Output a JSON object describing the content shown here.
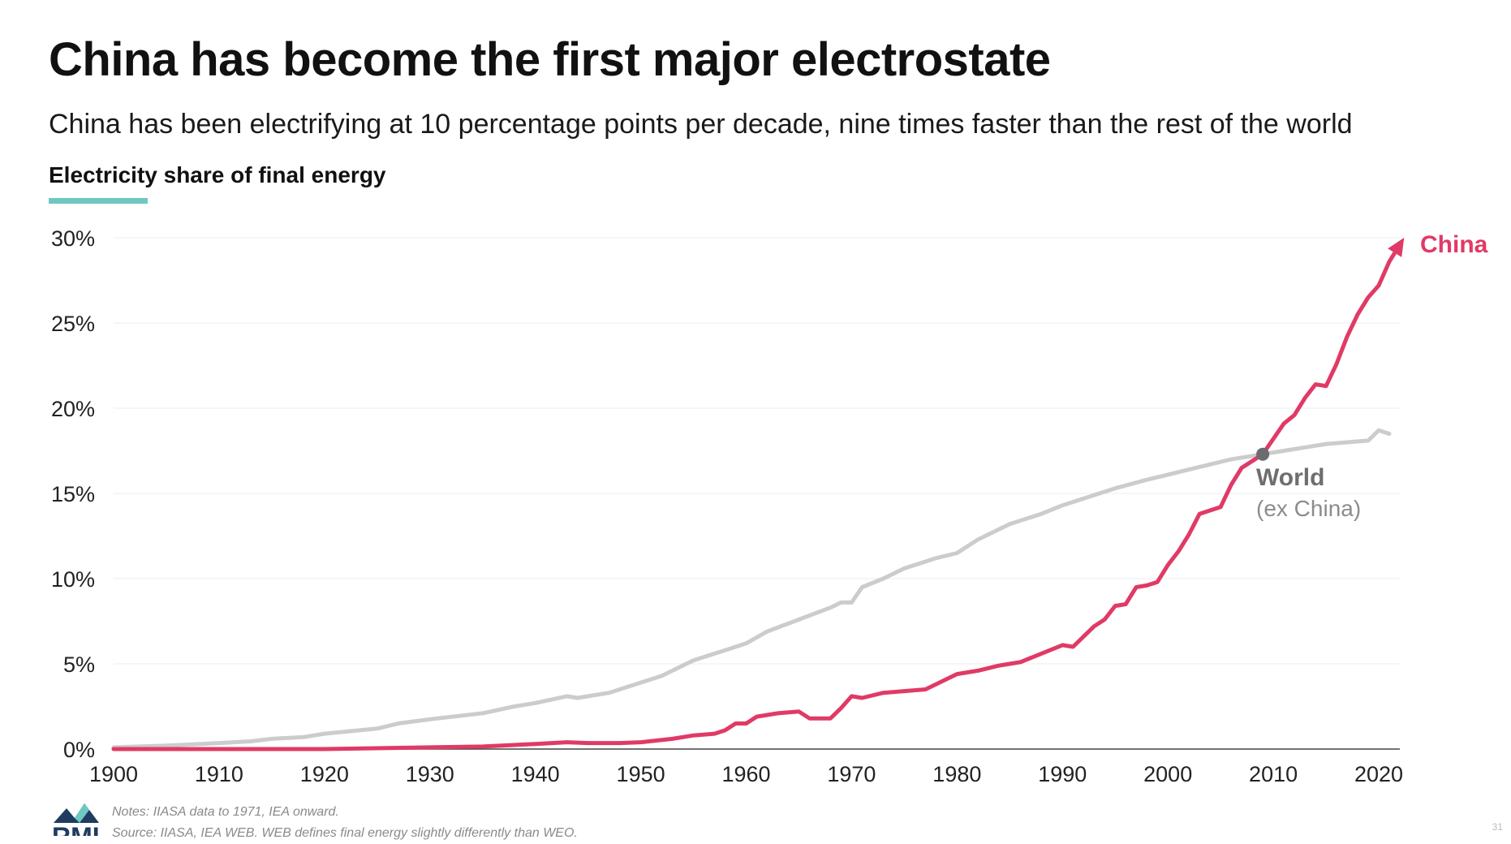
{
  "title": "China has become the first major electrostate",
  "subtitle": "China has been electrifying at 10 percentage points per decade, nine times faster than the rest of the world",
  "metric_label": "Electricity share of final energy",
  "notes": "Notes: IIASA data to 1971, IEA onward.",
  "source": "Source: IIASA, IEA WEB. WEB defines final energy slightly differently than WEO.",
  "logo": {
    "text": "RMI",
    "icon": "rmi-mountain-logo-icon"
  },
  "page_number": "31",
  "colors": {
    "china": "#e03a66",
    "world": "#cccccc",
    "world_label": "#6e6e6e",
    "marker": "#6b6b72",
    "accent": "#6fc7c2"
  },
  "chart_data": {
    "type": "line",
    "title": "Electricity share of final energy",
    "xlabel": "",
    "ylabel": "",
    "xlim": [
      1900,
      2022
    ],
    "ylim": [
      0,
      30
    ],
    "x_ticks": [
      "1900",
      "1910",
      "1920",
      "1930",
      "1940",
      "1950",
      "1960",
      "1970",
      "1980",
      "1990",
      "2000",
      "2010",
      "2020"
    ],
    "y_ticks": [
      "0%",
      "5%",
      "10%",
      "15%",
      "20%",
      "25%",
      "30%"
    ],
    "grid": "horizontal",
    "legend": "direct labels",
    "series": [
      {
        "name": "World",
        "sublabel": "(ex China)",
        "color": "#cccccc",
        "points": [
          [
            1900,
            0.1
          ],
          [
            1905,
            0.2
          ],
          [
            1910,
            0.35
          ],
          [
            1913,
            0.45
          ],
          [
            1915,
            0.6
          ],
          [
            1918,
            0.7
          ],
          [
            1920,
            0.9
          ],
          [
            1925,
            1.2
          ],
          [
            1927,
            1.5
          ],
          [
            1930,
            1.75
          ],
          [
            1935,
            2.1
          ],
          [
            1938,
            2.5
          ],
          [
            1940,
            2.7
          ],
          [
            1943,
            3.1
          ],
          [
            1944,
            3.0
          ],
          [
            1947,
            3.3
          ],
          [
            1950,
            3.9
          ],
          [
            1952,
            4.3
          ],
          [
            1955,
            5.2
          ],
          [
            1958,
            5.8
          ],
          [
            1960,
            6.2
          ],
          [
            1962,
            6.9
          ],
          [
            1965,
            7.6
          ],
          [
            1968,
            8.3
          ],
          [
            1969,
            8.6
          ],
          [
            1970,
            8.6
          ],
          [
            1971,
            9.5
          ],
          [
            1973,
            10.0
          ],
          [
            1975,
            10.6
          ],
          [
            1978,
            11.2
          ],
          [
            1980,
            11.5
          ],
          [
            1982,
            12.3
          ],
          [
            1985,
            13.2
          ],
          [
            1988,
            13.8
          ],
          [
            1990,
            14.3
          ],
          [
            1993,
            14.9
          ],
          [
            1995,
            15.3
          ],
          [
            1998,
            15.8
          ],
          [
            2000,
            16.1
          ],
          [
            2002,
            16.4
          ],
          [
            2004,
            16.7
          ],
          [
            2006,
            17.0
          ],
          [
            2008,
            17.2
          ],
          [
            2009,
            17.3
          ],
          [
            2011,
            17.5
          ],
          [
            2013,
            17.7
          ],
          [
            2015,
            17.9
          ],
          [
            2017,
            18.0
          ],
          [
            2019,
            18.1
          ],
          [
            2020,
            18.7
          ],
          [
            2021,
            18.5
          ]
        ]
      },
      {
        "name": "China",
        "color": "#e03a66",
        "points": [
          [
            1900,
            0.0
          ],
          [
            1920,
            0.0
          ],
          [
            1930,
            0.1
          ],
          [
            1935,
            0.15
          ],
          [
            1940,
            0.3
          ],
          [
            1943,
            0.4
          ],
          [
            1945,
            0.35
          ],
          [
            1948,
            0.35
          ],
          [
            1950,
            0.4
          ],
          [
            1953,
            0.6
          ],
          [
            1955,
            0.8
          ],
          [
            1957,
            0.9
          ],
          [
            1958,
            1.1
          ],
          [
            1959,
            1.5
          ],
          [
            1960,
            1.5
          ],
          [
            1961,
            1.9
          ],
          [
            1962,
            2.0
          ],
          [
            1963,
            2.1
          ],
          [
            1965,
            2.2
          ],
          [
            1966,
            1.8
          ],
          [
            1968,
            1.8
          ],
          [
            1969,
            2.4
          ],
          [
            1970,
            3.1
          ],
          [
            1971,
            3.0
          ],
          [
            1973,
            3.3
          ],
          [
            1975,
            3.4
          ],
          [
            1977,
            3.5
          ],
          [
            1979,
            4.1
          ],
          [
            1980,
            4.4
          ],
          [
            1982,
            4.6
          ],
          [
            1984,
            4.9
          ],
          [
            1986,
            5.1
          ],
          [
            1988,
            5.6
          ],
          [
            1990,
            6.1
          ],
          [
            1991,
            6.0
          ],
          [
            1992,
            6.6
          ],
          [
            1993,
            7.2
          ],
          [
            1994,
            7.6
          ],
          [
            1995,
            8.4
          ],
          [
            1996,
            8.5
          ],
          [
            1997,
            9.5
          ],
          [
            1998,
            9.6
          ],
          [
            1999,
            9.8
          ],
          [
            2000,
            10.8
          ],
          [
            2001,
            11.6
          ],
          [
            2002,
            12.6
          ],
          [
            2003,
            13.8
          ],
          [
            2004,
            14.0
          ],
          [
            2005,
            14.2
          ],
          [
            2006,
            15.5
          ],
          [
            2007,
            16.5
          ],
          [
            2008,
            16.9
          ],
          [
            2009,
            17.3
          ],
          [
            2010,
            18.2
          ],
          [
            2011,
            19.1
          ],
          [
            2012,
            19.6
          ],
          [
            2013,
            20.6
          ],
          [
            2014,
            21.4
          ],
          [
            2015,
            21.3
          ],
          [
            2016,
            22.6
          ],
          [
            2017,
            24.2
          ],
          [
            2018,
            25.5
          ],
          [
            2019,
            26.5
          ],
          [
            2020,
            27.2
          ],
          [
            2021,
            28.6
          ],
          [
            2022,
            29.6
          ]
        ]
      }
    ],
    "annotations": [
      {
        "text": "World",
        "sublabel": "(ex China)",
        "x": 2009,
        "y": 17.3,
        "marker": "dot"
      },
      {
        "text": "China",
        "x": 2022,
        "y": 29.6,
        "marker": "arrow"
      }
    ]
  }
}
